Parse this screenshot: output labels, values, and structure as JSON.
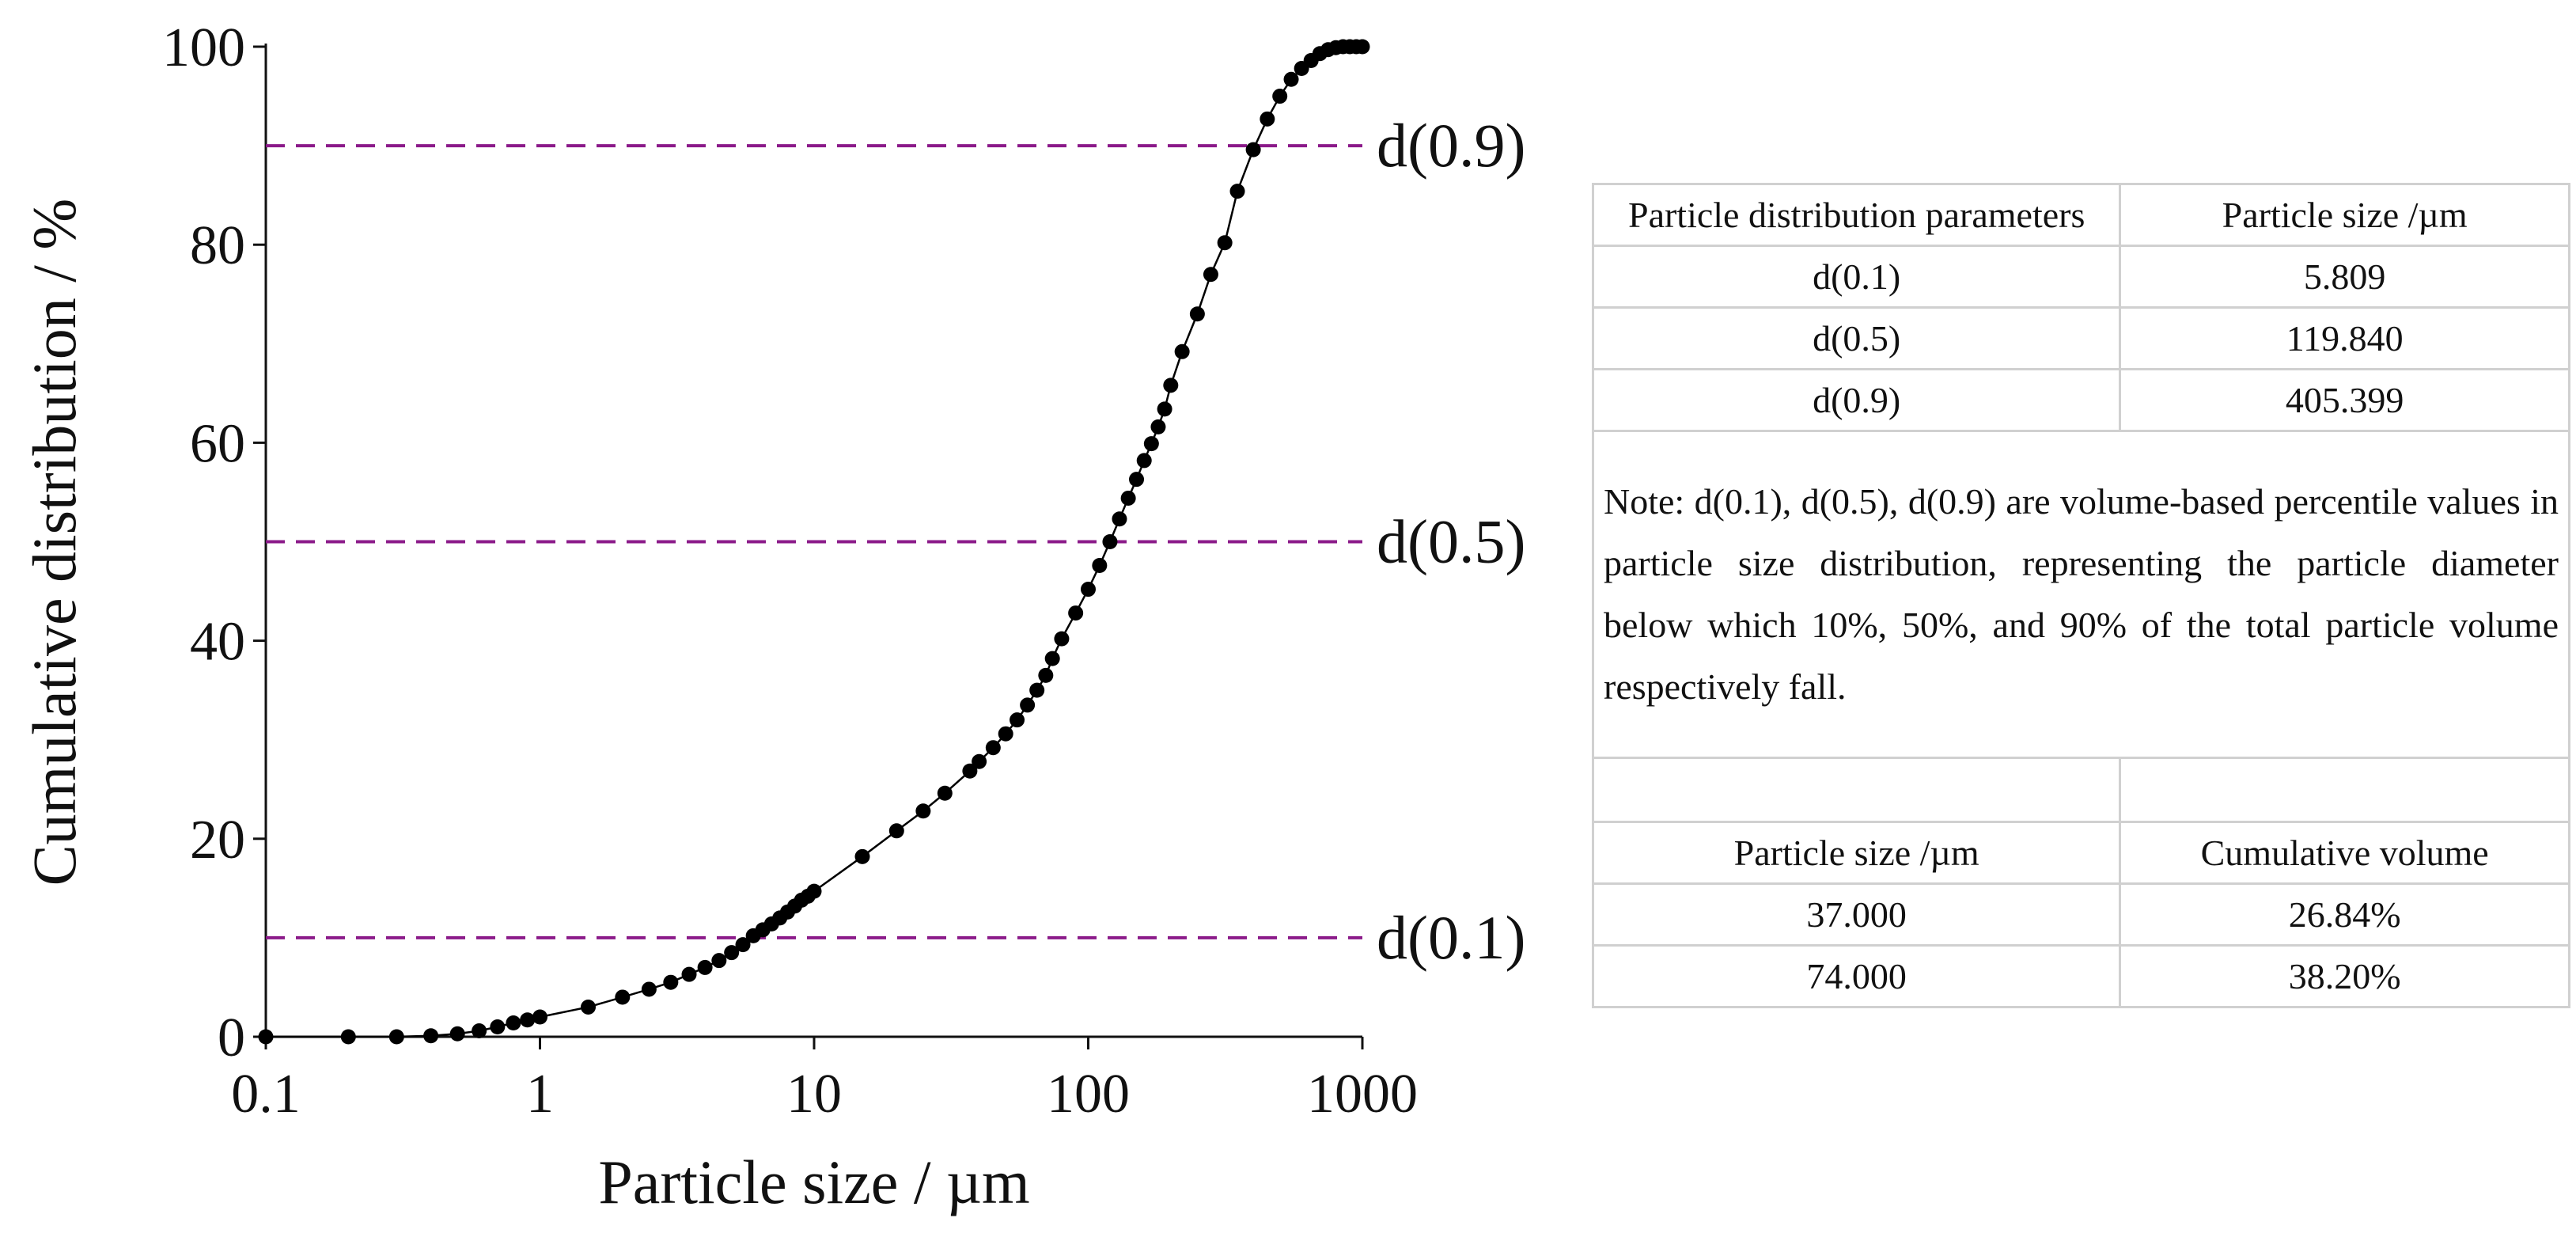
{
  "chart_data": {
    "type": "scatter-line",
    "x_label": "Particle size / µm",
    "y_label": "Cumulative distribution / %",
    "xscale": "log",
    "xlim": [
      0.1,
      1000
    ],
    "xticks": [
      0.1,
      1,
      10,
      100,
      1000
    ],
    "ylim": [
      0,
      100
    ],
    "yticks": [
      0,
      20,
      40,
      60,
      80,
      100
    ],
    "series": [
      {
        "color": "#000000",
        "x": [
          0.1,
          0.2,
          0.3,
          0.4,
          0.5,
          0.6,
          0.7,
          0.8,
          0.9,
          1,
          1.5,
          2,
          2.5,
          3,
          3.5,
          4,
          4.5,
          5,
          5.5,
          6,
          6.5,
          7,
          7.5,
          8,
          8.5,
          9,
          9.5,
          10,
          15,
          20,
          25,
          30,
          37,
          40,
          45,
          50,
          55,
          60,
          65,
          70,
          74,
          80,
          90,
          100,
          110,
          120,
          130,
          140,
          150,
          160,
          170,
          180,
          190,
          200,
          220,
          250,
          280,
          315,
          350,
          400,
          450,
          500,
          550,
          600,
          650,
          700,
          750,
          800,
          850,
          900,
          950,
          1000
        ],
        "values": [
          0,
          0,
          0,
          0.1,
          0.3,
          0.6,
          1.0,
          1.4,
          1.7,
          2.0,
          3.0,
          4.0,
          4.8,
          5.5,
          6.3,
          7.0,
          7.7,
          8.5,
          9.3,
          10.2,
          10.8,
          11.4,
          12.0,
          12.6,
          13.2,
          13.8,
          14.2,
          14.7,
          18.2,
          20.8,
          22.8,
          24.6,
          26.84,
          27.8,
          29.2,
          30.6,
          32.0,
          33.5,
          35.0,
          36.5,
          38.2,
          40.2,
          42.8,
          45.2,
          47.6,
          50.0,
          52.3,
          54.4,
          56.3,
          58.2,
          59.9,
          61.6,
          63.4,
          65.8,
          69.2,
          73.0,
          77.0,
          80.2,
          85.4,
          89.6,
          92.7,
          95.0,
          96.7,
          97.8,
          98.6,
          99.3,
          99.7,
          99.9,
          100,
          100,
          100,
          100
        ]
      }
    ],
    "reference_lines": [
      {
        "value": 90,
        "label": "d(0.9)"
      },
      {
        "value": 50,
        "label": "d(0.5)"
      },
      {
        "value": 10,
        "label": "d(0.1)"
      }
    ],
    "reference_color": "#8b1a89"
  },
  "table": {
    "header": [
      "Particle distribution parameters",
      "Particle size /µm"
    ],
    "rows": [
      [
        "d(0.1)",
        "5.809"
      ],
      [
        "d(0.5)",
        "119.840"
      ],
      [
        "d(0.9)",
        "405.399"
      ]
    ],
    "note": "Note: d(0.1), d(0.5), d(0.9) are volume-based percentile values in particle size distribution, representing the particle diameter below which 10%, 50%, and 90% of the total particle volume respectively fall.",
    "header2": [
      "Particle size /µm",
      "Cumulative volume"
    ],
    "rows2": [
      [
        "37.000",
        "26.84%"
      ],
      [
        "74.000",
        "38.20%"
      ]
    ]
  }
}
